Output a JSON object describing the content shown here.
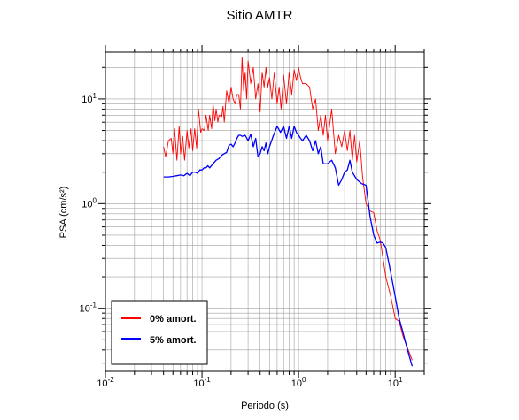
{
  "chart_data": {
    "type": "line",
    "title": "Sitio AMTR",
    "xlabel": "Periodo (s)",
    "ylabel": "PSA (cm/s²)",
    "xscale": "log",
    "yscale": "log",
    "xlim": [
      0.01,
      20
    ],
    "ylim": [
      0.025,
      28
    ],
    "grid": true,
    "legend_position": "bottom-left",
    "x_tick_labels": [
      {
        "value": 0.01,
        "base": "10",
        "exp": "-2"
      },
      {
        "value": 0.1,
        "base": "10",
        "exp": "-1"
      },
      {
        "value": 1,
        "base": "10",
        "exp": "0"
      },
      {
        "value": 10,
        "base": "10",
        "exp": "1"
      }
    ],
    "y_tick_labels": [
      {
        "value": 0.1,
        "base": "10",
        "exp": "-1"
      },
      {
        "value": 1,
        "base": "10",
        "exp": "0"
      },
      {
        "value": 10,
        "base": "10",
        "exp": "1"
      }
    ],
    "series": [
      {
        "name": "0% amort.",
        "color": "#ff0000",
        "x": [
          0.04,
          0.042,
          0.045,
          0.048,
          0.05,
          0.052,
          0.055,
          0.058,
          0.06,
          0.063,
          0.066,
          0.07,
          0.073,
          0.077,
          0.08,
          0.084,
          0.088,
          0.092,
          0.097,
          0.1,
          0.106,
          0.11,
          0.116,
          0.12,
          0.126,
          0.13,
          0.136,
          0.14,
          0.146,
          0.15,
          0.16,
          0.165,
          0.17,
          0.18,
          0.19,
          0.2,
          0.21,
          0.22,
          0.23,
          0.24,
          0.25,
          0.26,
          0.27,
          0.28,
          0.29,
          0.3,
          0.32,
          0.34,
          0.36,
          0.38,
          0.4,
          0.42,
          0.44,
          0.46,
          0.48,
          0.5,
          0.53,
          0.56,
          0.6,
          0.63,
          0.66,
          0.7,
          0.75,
          0.8,
          0.85,
          0.9,
          0.95,
          1.0,
          1.05,
          1.1,
          1.2,
          1.3,
          1.4,
          1.5,
          1.6,
          1.7,
          1.8,
          1.9,
          2.0,
          2.2,
          2.4,
          2.6,
          2.8,
          3.0,
          3.2,
          3.4,
          3.6,
          3.8,
          4.0,
          4.3,
          4.6,
          5.0,
          5.5,
          6.0,
          6.5,
          7.0,
          7.5,
          8.0,
          9.0,
          10.0,
          11.0,
          12.0,
          13.0,
          14.0,
          15.0
        ],
        "y": [
          3.5,
          2.8,
          4.0,
          4.2,
          3.0,
          5.2,
          2.6,
          5.5,
          3.0,
          4.4,
          2.6,
          5.0,
          3.4,
          5.2,
          3.2,
          5.2,
          3.4,
          8.0,
          4.8,
          5.2,
          5.0,
          7.0,
          5.0,
          7.0,
          5.2,
          9.0,
          6.2,
          8.0,
          6.0,
          7.0,
          6.8,
          8.5,
          6.0,
          12.0,
          9.0,
          13.0,
          10.0,
          9.0,
          11.0,
          11.0,
          8.0,
          25.0,
          12.0,
          18.0,
          10.0,
          23.0,
          14.0,
          20.0,
          10.0,
          14.0,
          7.5,
          18.0,
          13.0,
          20.0,
          13.0,
          16.0,
          10.0,
          18.0,
          9.0,
          13.0,
          8.0,
          17.0,
          9.0,
          18.0,
          11.0,
          19.0,
          15.0,
          20.0,
          16.0,
          14.0,
          14.0,
          13.0,
          8.0,
          10.0,
          5.0,
          7.0,
          4.5,
          7.0,
          4.0,
          8.0,
          3.0,
          4.5,
          3.5,
          5.0,
          3.2,
          5.0,
          2.6,
          4.5,
          2.5,
          4.0,
          1.8,
          1.0,
          0.85,
          0.82,
          0.55,
          0.45,
          0.3,
          0.2,
          0.13,
          0.08,
          0.075,
          0.055,
          0.045,
          0.038,
          0.032
        ]
      },
      {
        "name": "5% amort.",
        "color": "#0000ff",
        "x": [
          0.04,
          0.045,
          0.05,
          0.055,
          0.06,
          0.065,
          0.07,
          0.075,
          0.08,
          0.085,
          0.09,
          0.095,
          0.1,
          0.105,
          0.11,
          0.115,
          0.12,
          0.13,
          0.14,
          0.15,
          0.16,
          0.17,
          0.18,
          0.19,
          0.2,
          0.21,
          0.22,
          0.23,
          0.24,
          0.25,
          0.26,
          0.28,
          0.3,
          0.32,
          0.34,
          0.36,
          0.38,
          0.4,
          0.42,
          0.44,
          0.46,
          0.48,
          0.5,
          0.55,
          0.6,
          0.65,
          0.7,
          0.75,
          0.8,
          0.85,
          0.9,
          0.95,
          1.0,
          1.05,
          1.1,
          1.2,
          1.3,
          1.4,
          1.5,
          1.6,
          1.7,
          1.8,
          2.0,
          2.2,
          2.4,
          2.6,
          2.8,
          3.0,
          3.2,
          3.4,
          3.6,
          4.0,
          4.5,
          5.0,
          5.5,
          6.0,
          6.5,
          7.0,
          7.5,
          8.0,
          9.0,
          10.0,
          11.0,
          12.0,
          13.0,
          14.0,
          15.0
        ],
        "y": [
          1.8,
          1.8,
          1.82,
          1.85,
          1.88,
          1.85,
          1.95,
          1.85,
          2.0,
          2.0,
          1.95,
          2.1,
          2.1,
          2.2,
          2.2,
          2.3,
          2.2,
          2.4,
          2.6,
          2.7,
          2.9,
          3.0,
          3.1,
          3.6,
          3.7,
          3.5,
          3.8,
          4.2,
          4.5,
          4.5,
          4.4,
          4.5,
          4.0,
          4.6,
          3.5,
          4.2,
          2.8,
          3.0,
          3.5,
          3.2,
          3.8,
          3.0,
          3.5,
          4.5,
          5.5,
          4.8,
          5.5,
          4.2,
          5.5,
          4.2,
          5.5,
          4.8,
          4.5,
          4.2,
          4.0,
          4.5,
          4.0,
          3.2,
          4.0,
          3.0,
          3.5,
          2.4,
          2.4,
          2.6,
          2.2,
          1.5,
          1.7,
          2.0,
          2.1,
          2.6,
          2.0,
          1.7,
          1.55,
          1.5,
          0.75,
          0.5,
          0.42,
          0.43,
          0.42,
          0.38,
          0.22,
          0.13,
          0.08,
          0.06,
          0.045,
          0.035,
          0.028
        ]
      }
    ]
  }
}
